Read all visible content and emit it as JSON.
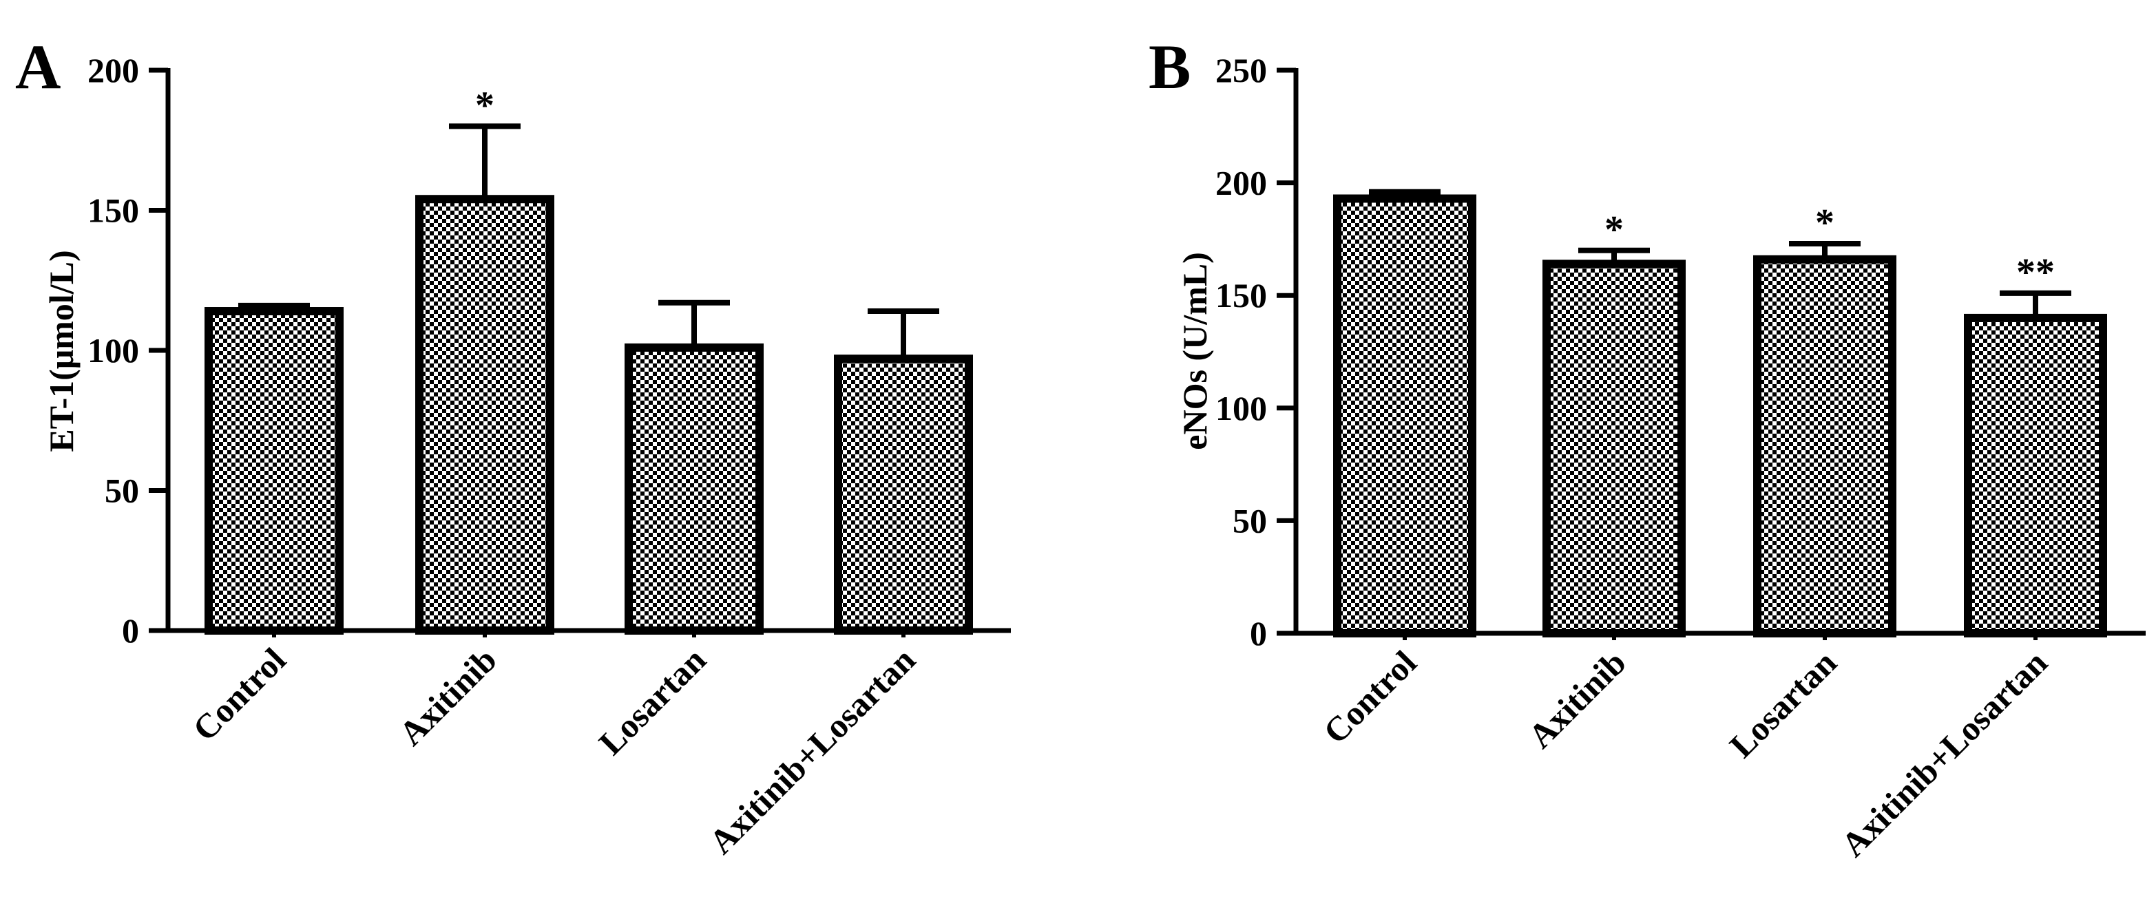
{
  "chart_data": [
    {
      "type": "bar",
      "panel_label": "A",
      "categories": [
        "Control",
        "Axitinib",
        "Losartan",
        "Axitinib+Losartan"
      ],
      "values": [
        114,
        154,
        101,
        97
      ],
      "error": [
        2,
        26,
        16,
        17
      ],
      "significance": [
        "",
        "*",
        "",
        ""
      ],
      "ylabel": "ET-1(μmol/L)",
      "ylim": [
        0,
        200
      ],
      "yticks": [
        0,
        50,
        100,
        150,
        200
      ],
      "grid": false,
      "fill_pattern": "checkerboard"
    },
    {
      "type": "bar",
      "panel_label": "B",
      "categories": [
        "Control",
        "Axitinib",
        "Losartan",
        "Axitinib+Losartan"
      ],
      "values": [
        193,
        164,
        166,
        140
      ],
      "error": [
        3,
        6,
        7,
        11
      ],
      "significance": [
        "",
        "*",
        "*",
        "**"
      ],
      "ylabel": "eNOs (U/mL)",
      "ylim": [
        0,
        250
      ],
      "yticks": [
        0,
        50,
        100,
        150,
        200,
        250
      ],
      "grid": false,
      "fill_pattern": "checkerboard"
    }
  ],
  "colors": {
    "bar_edge": "#000000",
    "pattern_dark": "#000000",
    "pattern_light": "#ffffff"
  }
}
